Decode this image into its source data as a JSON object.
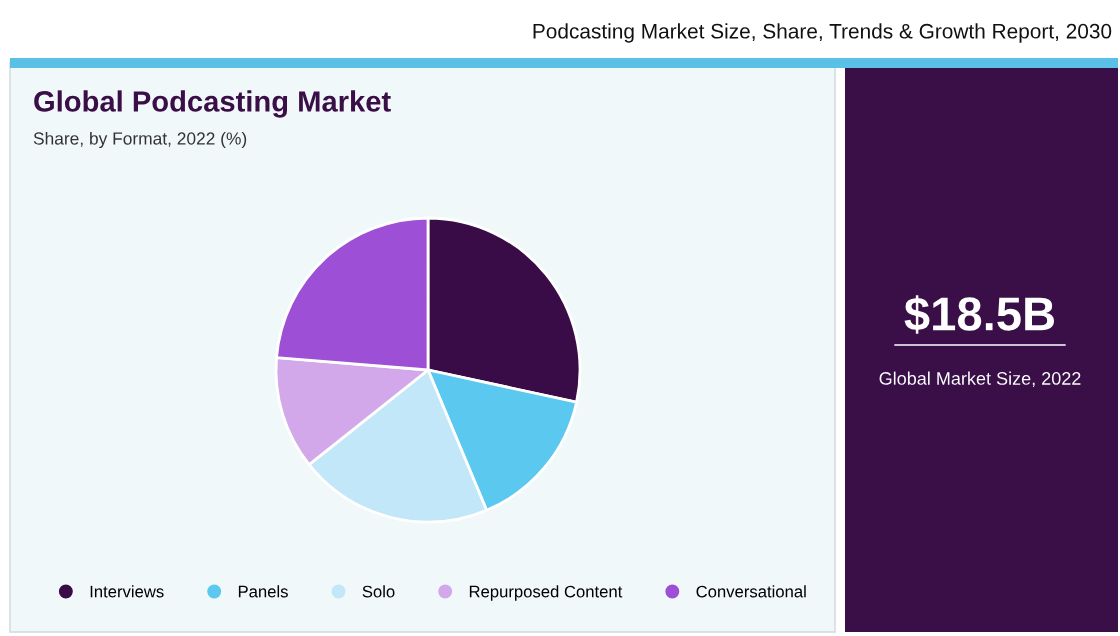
{
  "chart_data": {
    "type": "pie",
    "title": "Global Podcasting Market",
    "subtitle": "Share, by Format, 2022 (%)",
    "categories": [
      "Interviews",
      "Panels",
      "Solo",
      "Repurposed Content",
      "Conversational"
    ],
    "values": [
      28.4,
      15.3,
      20.6,
      12.0,
      23.7
    ],
    "colors": [
      "#3a0c47",
      "#5bc8ef",
      "#c2e7f8",
      "#d2a8ea",
      "#9d4fd6"
    ],
    "legend": "bottom",
    "annotations": [
      "Podcasting Market Size, Share, Trends & Growth Report, 2030",
      "$18.5B",
      "Global Market Size, 2022"
    ]
  }
}
